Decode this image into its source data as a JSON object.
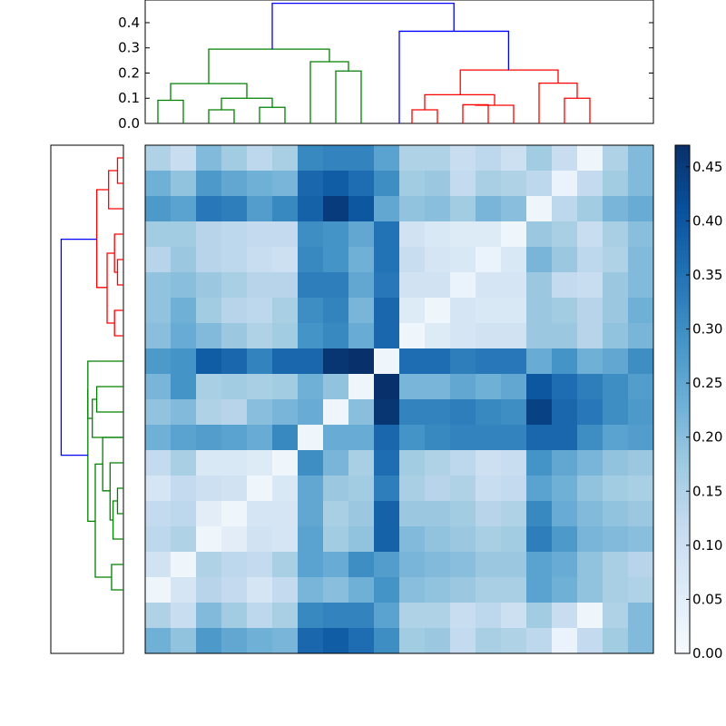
{
  "chart_data": {
    "type": "heatmap",
    "title": "",
    "subtitle": "",
    "n": 20,
    "colormap": "Blues",
    "vmin": 0,
    "vmax": 0.47,
    "matrix": [
      [
        0.15,
        0.11,
        0.21,
        0.17,
        0.13,
        0.16,
        0.31,
        0.32,
        0.32,
        0.26,
        0.15,
        0.15,
        0.11,
        0.13,
        0.1,
        0.17,
        0.11,
        0.02,
        0.15,
        0.21
      ],
      [
        0.23,
        0.19,
        0.28,
        0.25,
        0.23,
        0.22,
        0.37,
        0.39,
        0.36,
        0.3,
        0.17,
        0.18,
        0.12,
        0.16,
        0.15,
        0.13,
        0.03,
        0.12,
        0.17,
        0.21
      ],
      [
        0.28,
        0.26,
        0.34,
        0.33,
        0.27,
        0.31,
        0.38,
        0.45,
        0.4,
        0.25,
        0.19,
        0.2,
        0.17,
        0.22,
        0.2,
        0.02,
        0.13,
        0.17,
        0.22,
        0.24
      ],
      [
        0.17,
        0.17,
        0.14,
        0.13,
        0.12,
        0.12,
        0.3,
        0.29,
        0.25,
        0.35,
        0.09,
        0.07,
        0.06,
        0.06,
        0.02,
        0.18,
        0.16,
        0.11,
        0.16,
        0.2
      ],
      [
        0.14,
        0.18,
        0.14,
        0.13,
        0.11,
        0.1,
        0.31,
        0.29,
        0.23,
        0.35,
        0.11,
        0.08,
        0.07,
        0.03,
        0.07,
        0.22,
        0.18,
        0.13,
        0.15,
        0.21
      ],
      [
        0.19,
        0.2,
        0.18,
        0.16,
        0.14,
        0.14,
        0.33,
        0.33,
        0.25,
        0.34,
        0.09,
        0.09,
        0.03,
        0.08,
        0.08,
        0.18,
        0.12,
        0.11,
        0.18,
        0.21
      ],
      [
        0.19,
        0.23,
        0.17,
        0.14,
        0.13,
        0.16,
        0.3,
        0.32,
        0.22,
        0.37,
        0.06,
        0.02,
        0.08,
        0.07,
        0.07,
        0.18,
        0.17,
        0.14,
        0.18,
        0.23
      ],
      [
        0.2,
        0.24,
        0.21,
        0.18,
        0.15,
        0.17,
        0.29,
        0.31,
        0.24,
        0.37,
        0.02,
        0.06,
        0.08,
        0.09,
        0.09,
        0.18,
        0.18,
        0.14,
        0.19,
        0.22
      ],
      [
        0.28,
        0.29,
        0.39,
        0.37,
        0.32,
        0.37,
        0.37,
        0.46,
        0.47,
        0.02,
        0.36,
        0.36,
        0.33,
        0.34,
        0.34,
        0.24,
        0.29,
        0.23,
        0.25,
        0.3
      ],
      [
        0.22,
        0.29,
        0.16,
        0.17,
        0.16,
        0.17,
        0.23,
        0.19,
        0.02,
        0.47,
        0.22,
        0.22,
        0.25,
        0.23,
        0.25,
        0.4,
        0.36,
        0.33,
        0.3,
        0.27
      ],
      [
        0.19,
        0.21,
        0.15,
        0.14,
        0.2,
        0.22,
        0.24,
        0.02,
        0.2,
        0.46,
        0.32,
        0.32,
        0.33,
        0.31,
        0.3,
        0.44,
        0.37,
        0.34,
        0.3,
        0.28
      ],
      [
        0.23,
        0.26,
        0.27,
        0.26,
        0.24,
        0.31,
        0.02,
        0.24,
        0.24,
        0.37,
        0.29,
        0.31,
        0.32,
        0.32,
        0.32,
        0.37,
        0.37,
        0.3,
        0.26,
        0.27
      ],
      [
        0.12,
        0.16,
        0.07,
        0.07,
        0.06,
        0.02,
        0.3,
        0.22,
        0.16,
        0.36,
        0.17,
        0.15,
        0.13,
        0.1,
        0.11,
        0.29,
        0.25,
        0.22,
        0.19,
        0.18
      ],
      [
        0.08,
        0.12,
        0.1,
        0.09,
        0.02,
        0.07,
        0.25,
        0.18,
        0.17,
        0.33,
        0.16,
        0.14,
        0.15,
        0.11,
        0.12,
        0.26,
        0.23,
        0.19,
        0.17,
        0.16
      ],
      [
        0.12,
        0.13,
        0.05,
        0.02,
        0.08,
        0.08,
        0.25,
        0.16,
        0.18,
        0.38,
        0.18,
        0.18,
        0.17,
        0.14,
        0.15,
        0.31,
        0.24,
        0.21,
        0.19,
        0.18
      ],
      [
        0.13,
        0.15,
        0.02,
        0.05,
        0.09,
        0.08,
        0.26,
        0.17,
        0.19,
        0.38,
        0.21,
        0.19,
        0.18,
        0.16,
        0.17,
        0.33,
        0.28,
        0.22,
        0.21,
        0.2
      ],
      [
        0.09,
        0.02,
        0.15,
        0.13,
        0.12,
        0.16,
        0.26,
        0.24,
        0.3,
        0.27,
        0.22,
        0.21,
        0.2,
        0.18,
        0.18,
        0.26,
        0.24,
        0.19,
        0.16,
        0.14
      ],
      [
        0.02,
        0.08,
        0.14,
        0.12,
        0.08,
        0.12,
        0.22,
        0.2,
        0.23,
        0.29,
        0.2,
        0.19,
        0.18,
        0.16,
        0.16,
        0.26,
        0.23,
        0.19,
        0.16,
        0.15
      ]
    ],
    "top_dendrogram": {
      "yticks": [
        "0.0",
        "0.1",
        "0.2",
        "0.3",
        "0.4"
      ],
      "ylim": [
        0,
        0.49
      ],
      "colors": {
        "cluster_a": "#008000",
        "cluster_b": "#ff0000",
        "root": "#0000ff"
      },
      "links": [
        {
          "l": 0.5,
          "r": 1.5,
          "h": 0.092,
          "lh": 0,
          "rh": 0,
          "c": "cluster_a"
        },
        {
          "l": 2.5,
          "r": 3.5,
          "h": 0.054,
          "lh": 0,
          "rh": 0,
          "c": "cluster_a"
        },
        {
          "l": 4.5,
          "r": 5.5,
          "h": 0.064,
          "lh": 0,
          "rh": 0,
          "c": "cluster_a"
        },
        {
          "l": 3.0,
          "r": 5.0,
          "h": 0.1,
          "lh": 0.054,
          "rh": 0.064,
          "c": "cluster_a"
        },
        {
          "l": 1.0,
          "r": 4.0,
          "h": 0.158,
          "lh": 0.092,
          "rh": 0.1,
          "c": "cluster_a"
        },
        {
          "l": 7.5,
          "r": 8.5,
          "h": 0.208,
          "lh": 0,
          "rh": 0,
          "c": "cluster_a"
        },
        {
          "l": 6.5,
          "r": 8.0,
          "h": 0.245,
          "lh": 0,
          "rh": 0.208,
          "c": "cluster_a"
        },
        {
          "l": 2.5,
          "r": 7.25,
          "h": 0.295,
          "lh": 0.158,
          "rh": 0.245,
          "c": "cluster_a"
        },
        {
          "l": 10.5,
          "r": 11.5,
          "h": 0.054,
          "lh": 0,
          "rh": 0,
          "c": "cluster_b"
        },
        {
          "l": 12.5,
          "r": 13.5,
          "h": 0.074,
          "lh": 0,
          "rh": 0,
          "c": "cluster_b"
        },
        {
          "l": 13.0,
          "r": 14.5,
          "h": 0.072,
          "lh": 0.074,
          "rh": 0,
          "c": "cluster_b"
        },
        {
          "l": 11.0,
          "r": 13.75,
          "h": 0.114,
          "lh": 0.054,
          "rh": 0.072,
          "c": "cluster_b"
        },
        {
          "l": 16.5,
          "r": 17.5,
          "h": 0.1,
          "lh": 0,
          "rh": 0,
          "c": "cluster_b"
        },
        {
          "l": 15.5,
          "r": 17.0,
          "h": 0.16,
          "lh": 0,
          "rh": 0.1,
          "c": "cluster_b"
        },
        {
          "l": 12.4,
          "r": 16.25,
          "h": 0.212,
          "lh": 0.114,
          "rh": 0.16,
          "c": "cluster_b"
        },
        {
          "l": 10.0,
          "r": 14.3,
          "h": 0.366,
          "lh": 0,
          "rh": 0.212,
          "c": "root"
        },
        {
          "l": 5.0,
          "r": 12.15,
          "h": 0.477,
          "lh": 0.295,
          "rh": 0.366,
          "c": "root"
        }
      ]
    },
    "left_dendrogram": {
      "ylim": [
        0,
        0.49
      ],
      "colors": {
        "cluster_a": "#ff0000",
        "cluster_b": "#008000",
        "root": "#0000ff"
      },
      "links": [
        {
          "l": 0.5,
          "r": 1.5,
          "h": 0.04,
          "lh": 0,
          "rh": 0,
          "c": "cluster_a"
        },
        {
          "l": 1.0,
          "r": 2.5,
          "h": 0.1,
          "lh": 0.04,
          "rh": 0,
          "c": "cluster_a"
        },
        {
          "l": 4.5,
          "r": 5.5,
          "h": 0.04,
          "lh": 0,
          "rh": 0,
          "c": "cluster_a"
        },
        {
          "l": 3.5,
          "r": 5.0,
          "h": 0.06,
          "lh": 0,
          "rh": 0.04,
          "c": "cluster_a"
        },
        {
          "l": 6.5,
          "r": 7.5,
          "h": 0.06,
          "lh": 0,
          "rh": 0,
          "c": "cluster_a"
        },
        {
          "l": 4.25,
          "r": 7.0,
          "h": 0.11,
          "lh": 0.06,
          "rh": 0.06,
          "c": "cluster_a"
        },
        {
          "l": 1.75,
          "r": 5.6,
          "h": 0.18,
          "lh": 0.1,
          "rh": 0.11,
          "c": "cluster_a"
        },
        {
          "l": 9.5,
          "r": 10.5,
          "h": 0.18,
          "lh": 0,
          "rh": 0,
          "c": "cluster_b"
        },
        {
          "l": 10.0,
          "r": 11.5,
          "h": 0.21,
          "lh": 0.18,
          "rh": 0,
          "c": "cluster_b"
        },
        {
          "l": 8.5,
          "r": 10.75,
          "h": 0.24,
          "lh": 0,
          "rh": 0.21,
          "c": "cluster_b"
        },
        {
          "l": 13.5,
          "r": 14.5,
          "h": 0.04,
          "lh": 0,
          "rh": 0,
          "c": "cluster_b"
        },
        {
          "l": 14.0,
          "r": 15.5,
          "h": 0.07,
          "lh": 0.04,
          "rh": 0,
          "c": "cluster_b"
        },
        {
          "l": 12.5,
          "r": 14.75,
          "h": 0.09,
          "lh": 0,
          "rh": 0.07,
          "c": "cluster_b"
        },
        {
          "l": 11.5,
          "r": 13.6,
          "h": 0.14,
          "lh": 0,
          "rh": 0.09,
          "c": "cluster_b"
        },
        {
          "l": 16.5,
          "r": 17.5,
          "h": 0.08,
          "lh": 0,
          "rh": 0,
          "c": "cluster_b"
        },
        {
          "l": 12.55,
          "r": 17.0,
          "h": 0.19,
          "lh": 0.14,
          "rh": 0.08,
          "c": "cluster_b"
        },
        {
          "l": 9.6,
          "r": 14.8,
          "h": 0.24,
          "lh": 0.24,
          "rh": 0.19,
          "c": "cluster_b"
        },
        {
          "l": 3.7,
          "r": 12.2,
          "h": 0.42,
          "lh": 0.18,
          "rh": 0.24,
          "c": "root"
        }
      ]
    },
    "colorbar": {
      "ticks": [
        {
          "value": 0.0,
          "label": "0.00"
        },
        {
          "value": 0.05,
          "label": "0.05"
        },
        {
          "value": 0.1,
          "label": "0.10"
        },
        {
          "value": 0.15,
          "label": "0.15"
        },
        {
          "value": 0.2,
          "label": "0.20"
        },
        {
          "value": 0.25,
          "label": "0.25"
        },
        {
          "value": 0.3,
          "label": "0.30"
        },
        {
          "value": 0.35,
          "label": "0.35"
        },
        {
          "value": 0.4,
          "label": "0.40"
        },
        {
          "value": 0.45,
          "label": "0.45"
        }
      ]
    }
  }
}
